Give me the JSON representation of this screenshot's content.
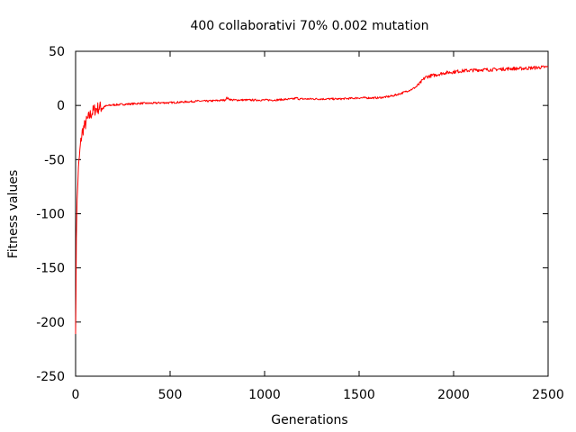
{
  "chart_data": {
    "type": "line",
    "title": "400 collaborativi 70% 0.002 mutation",
    "xlabel": "Generations",
    "ylabel": "Fitness values",
    "xlim": [
      0,
      2500
    ],
    "ylim": [
      -250,
      50
    ],
    "xticks": [
      0,
      500,
      1000,
      1500,
      2000,
      2500
    ],
    "yticks": [
      -250,
      -200,
      -150,
      -100,
      -50,
      0,
      50
    ],
    "xtick_labels": [
      "0",
      "500",
      "1000",
      "1500",
      "2000",
      "2500"
    ],
    "ytick_labels": [
      "-250",
      "-200",
      "-150",
      "-100",
      "-50",
      "0",
      "50"
    ],
    "grid": false,
    "series": [
      {
        "color": "#ff0000",
        "x": [
          0,
          2,
          4,
          6,
          8,
          10,
          12,
          15,
          20,
          25,
          30,
          35,
          40,
          50,
          60,
          70,
          80,
          90,
          100,
          110,
          125,
          150,
          175,
          200,
          250,
          300,
          350,
          400,
          450,
          500,
          550,
          600,
          650,
          700,
          750,
          790,
          800,
          810,
          830,
          850,
          900,
          950,
          1000,
          1050,
          1100,
          1150,
          1170,
          1180,
          1200,
          1250,
          1300,
          1350,
          1400,
          1450,
          1500,
          1550,
          1600,
          1650,
          1680,
          1700,
          1720,
          1750,
          1780,
          1800,
          1820,
          1840,
          1850,
          1870,
          1900,
          1950,
          2000,
          2050,
          2100,
          2150,
          2200,
          2250,
          2300,
          2350,
          2400,
          2450,
          2500
        ],
        "y": [
          -205,
          -180,
          -120,
          -100,
          -90,
          -80,
          -70,
          -60,
          -48,
          -38,
          -30,
          -25,
          -22,
          -18,
          -14,
          -11,
          -8,
          -6,
          -4,
          -3,
          -2,
          -1,
          0,
          0.5,
          1,
          1.5,
          2,
          2,
          2.5,
          2.5,
          3,
          3.5,
          4,
          4,
          4.5,
          5,
          7,
          6,
          5,
          5,
          5,
          5,
          5,
          5,
          5.5,
          6,
          7,
          6,
          6,
          6,
          6,
          6,
          6,
          6.5,
          7,
          7,
          7,
          8,
          9,
          10,
          11,
          13,
          15,
          17,
          20,
          24,
          26,
          27,
          28,
          30,
          31,
          32,
          32.5,
          33,
          33,
          33.5,
          34,
          34,
          34.5,
          35,
          35.5
        ]
      }
    ]
  }
}
